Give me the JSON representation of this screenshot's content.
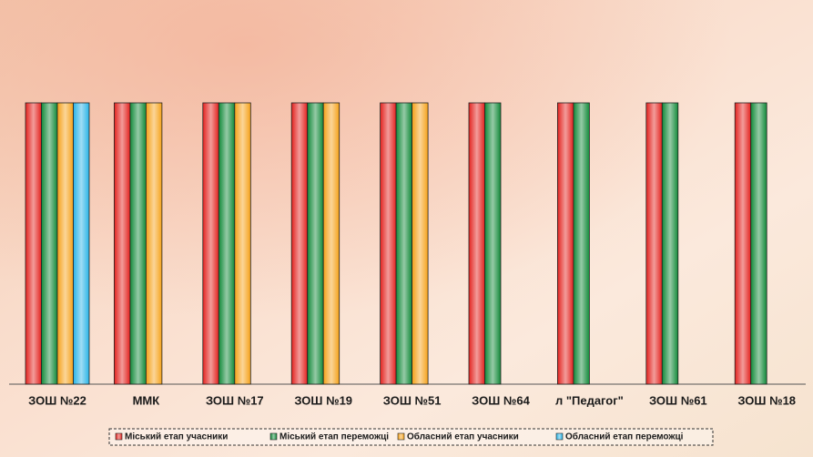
{
  "chart_data": {
    "type": "bar",
    "categories": [
      "ЗОШ №22",
      "ММК",
      "ЗОШ №17",
      "ЗОШ №19",
      "ЗОШ №51",
      "ЗОШ №64",
      "л \"Педагог\"",
      "ЗОШ №61",
      "ЗОШ №18"
    ],
    "series": [
      {
        "name": "Міський етап учасники",
        "color": "#e3231f",
        "values": [
          1,
          1,
          1,
          1,
          1,
          1,
          1,
          1,
          1
        ]
      },
      {
        "name": "Міський етап переможці",
        "color": "#138a3a",
        "values": [
          1,
          1,
          1,
          1,
          1,
          1,
          1,
          1,
          1
        ]
      },
      {
        "name": "Обласний етап учасники",
        "color": "#f5a21a",
        "values": [
          1,
          1,
          1,
          1,
          1,
          null,
          null,
          null,
          null
        ]
      },
      {
        "name": "Обласний етап переможці",
        "color": "#2ab4e6",
        "values": [
          1,
          null,
          null,
          null,
          null,
          null,
          null,
          null,
          null
        ]
      }
    ],
    "ylim": [
      0,
      1
    ]
  }
}
